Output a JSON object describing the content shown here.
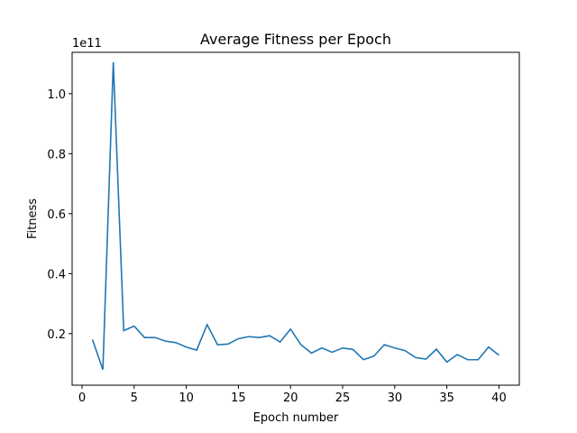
{
  "chart_data": {
    "type": "line",
    "title": "Average Fitness per Epoch",
    "xlabel": "Epoch number",
    "ylabel": "Fitness",
    "y_offset_label": "1e11",
    "xlim": [
      -0.95,
      41.95
    ],
    "ylim": [
      0.028,
      1.138
    ],
    "xticks": [
      0,
      5,
      10,
      15,
      20,
      25,
      30,
      35,
      40
    ],
    "xtick_labels": [
      "0",
      "5",
      "10",
      "15",
      "20",
      "25",
      "30",
      "35",
      "40"
    ],
    "yticks": [
      0.2,
      0.4,
      0.6,
      0.8,
      1.0
    ],
    "ytick_labels": [
      "0.2",
      "0.4",
      "0.6",
      "0.8",
      "1.0"
    ],
    "grid": false,
    "line_color": "#1f77b4",
    "series": [
      {
        "x": [
          1,
          2,
          3,
          4,
          5,
          6,
          7,
          8,
          9,
          10,
          11,
          12,
          13,
          14,
          15,
          16,
          17,
          18,
          19,
          20,
          21,
          22,
          23,
          24,
          25,
          26,
          27,
          28,
          29,
          30,
          31,
          32,
          33,
          34,
          35,
          36,
          37,
          38,
          39,
          40
        ],
        "values": [
          0.18,
          0.08,
          1.105,
          0.21,
          0.225,
          0.187,
          0.187,
          0.175,
          0.17,
          0.155,
          0.145,
          0.23,
          0.163,
          0.165,
          0.183,
          0.19,
          0.187,
          0.193,
          0.172,
          0.215,
          0.163,
          0.135,
          0.152,
          0.138,
          0.152,
          0.147,
          0.113,
          0.125,
          0.163,
          0.152,
          0.143,
          0.12,
          0.115,
          0.148,
          0.105,
          0.13,
          0.113,
          0.113,
          0.155,
          0.128
        ]
      }
    ]
  }
}
